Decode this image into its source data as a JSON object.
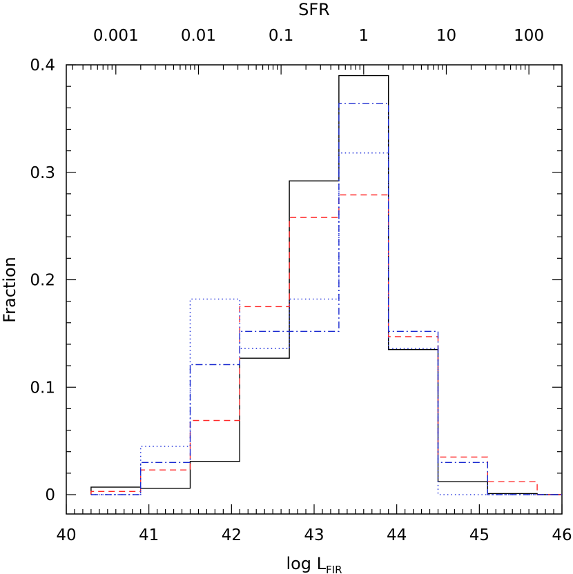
{
  "chart_data": {
    "type": "histogram-step",
    "xlabel": {
      "main": "log L",
      "sub": "FIR"
    },
    "ylabel": "Fraction",
    "top_axis_title": "SFR",
    "xlim": [
      40,
      46
    ],
    "ylim": [
      0,
      0.4
    ],
    "x_ticks": [
      {
        "value": 40,
        "label": "40"
      },
      {
        "value": 41,
        "label": "41"
      },
      {
        "value": 42,
        "label": "42"
      },
      {
        "value": 43,
        "label": "43"
      },
      {
        "value": 44,
        "label": "44"
      },
      {
        "value": 45,
        "label": "45"
      },
      {
        "value": 46,
        "label": "46"
      }
    ],
    "y_ticks": [
      {
        "value": 0,
        "label": "0"
      },
      {
        "value": 0.1,
        "label": "0.1"
      },
      {
        "value": 0.2,
        "label": "0.2"
      },
      {
        "value": 0.3,
        "label": "0.3"
      },
      {
        "value": 0.4,
        "label": "0.4"
      }
    ],
    "top_axis": {
      "scale": "log",
      "sfr_at_lfir_43_6": 1,
      "ticks": [
        {
          "value": 0.001,
          "label": "0.001"
        },
        {
          "value": 0.01,
          "label": "0.01"
        },
        {
          "value": 0.1,
          "label": "0.1"
        },
        {
          "value": 1,
          "label": "1"
        },
        {
          "value": 10,
          "label": "10"
        },
        {
          "value": 100,
          "label": "100"
        }
      ]
    },
    "bin_edges": [
      40.3,
      40.9,
      41.5,
      42.1,
      42.7,
      43.3,
      43.9,
      44.5,
      45.1,
      45.7,
      46.0
    ],
    "series": [
      {
        "style": "solid",
        "color": "#000000",
        "values": [
          0.007,
          0.006,
          0.031,
          0.127,
          0.292,
          0.39,
          0.135,
          0.012,
          0.001,
          0.0
        ]
      },
      {
        "style": "dashed",
        "color": "#ff2a2a",
        "values": [
          0.003,
          0.023,
          0.069,
          0.175,
          0.258,
          0.279,
          0.147,
          0.035,
          0.012,
          0.0
        ]
      },
      {
        "style": "dotted",
        "color": "#2b3bdd",
        "values": [
          0.0,
          0.045,
          0.182,
          0.136,
          0.182,
          0.318,
          0.136,
          0.0,
          0.0,
          0.0
        ]
      },
      {
        "style": "dashdot",
        "color": "#1a2ad0",
        "values": [
          0.0,
          0.03,
          0.121,
          0.152,
          0.152,
          0.364,
          0.152,
          0.03,
          0.0,
          0.0
        ]
      }
    ]
  }
}
